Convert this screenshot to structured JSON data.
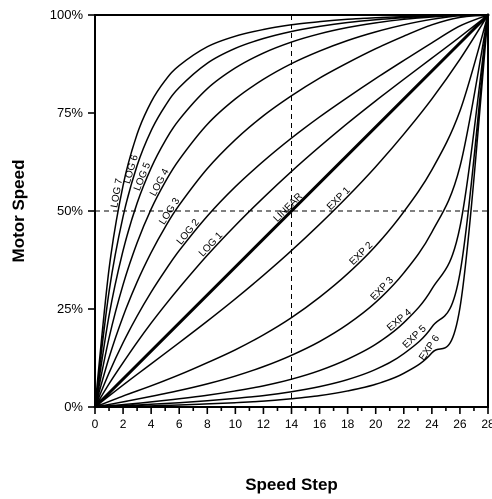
{
  "chart_data": {
    "type": "line",
    "title": "",
    "xlabel": "Speed Step",
    "ylabel": "Motor Speed",
    "xlim": [
      0,
      28
    ],
    "ylim": [
      0,
      100
    ],
    "x_ticks": [
      0,
      2,
      4,
      6,
      8,
      10,
      12,
      14,
      16,
      18,
      20,
      22,
      24,
      26,
      28
    ],
    "y_ticks": [
      {
        "value": 0,
        "label": "0%"
      },
      {
        "value": 25,
        "label": "25%"
      },
      {
        "value": 50,
        "label": "50%"
      },
      {
        "value": 75,
        "label": "75%"
      },
      {
        "value": 100,
        "label": "100%"
      }
    ],
    "grid": false,
    "reference_lines": {
      "x": 14,
      "y": 50,
      "style": "dashed"
    },
    "series": [
      {
        "name": "LOG 7",
        "x": [
          0,
          1,
          2,
          3,
          4,
          5,
          6,
          8,
          10,
          12,
          14,
          16,
          18,
          20,
          22,
          24,
          26,
          28
        ],
        "y": [
          0,
          35.2,
          56.5,
          69.6,
          77.8,
          83.3,
          87.1,
          91.9,
          94.6,
          96.3,
          97.5,
          98.3,
          98.9,
          99.3,
          99.6,
          99.8,
          99.9,
          100
        ]
      },
      {
        "name": "LOG 6",
        "x": [
          0,
          1,
          2,
          3,
          4,
          5,
          6,
          8,
          10,
          12,
          14,
          16,
          18,
          20,
          22,
          24,
          26,
          28
        ],
        "y": [
          0,
          29.4,
          48.6,
          61.6,
          70.5,
          76.8,
          81.5,
          87.7,
          91.5,
          94.0,
          95.8,
          97.1,
          98.1,
          98.8,
          99.3,
          99.7,
          99.9,
          100
        ]
      },
      {
        "name": "LOG 5",
        "x": [
          0,
          1,
          2,
          3,
          4,
          5,
          6,
          8,
          10,
          12,
          14,
          16,
          18,
          20,
          22,
          24,
          26,
          28
        ],
        "y": [
          0,
          23.3,
          39.9,
          52.0,
          61.0,
          67.9,
          73.3,
          81.2,
          86.5,
          90.3,
          93.1,
          95.2,
          96.8,
          98.0,
          98.9,
          99.5,
          99.9,
          100
        ]
      },
      {
        "name": "LOG 4",
        "x": [
          0,
          1,
          2,
          3,
          4,
          5,
          6,
          8,
          10,
          12,
          14,
          16,
          18,
          20,
          22,
          24,
          26,
          28
        ],
        "y": [
          0,
          17.6,
          31.2,
          41.9,
          50.5,
          57.4,
          63.1,
          72.1,
          78.6,
          83.6,
          87.6,
          90.8,
          93.5,
          95.7,
          97.5,
          98.9,
          99.8,
          100
        ]
      },
      {
        "name": "LOG 3",
        "x": [
          0,
          1,
          2,
          3,
          4,
          5,
          6,
          8,
          10,
          12,
          14,
          16,
          18,
          20,
          22,
          24,
          26,
          28
        ],
        "y": [
          0,
          12.6,
          23.1,
          31.9,
          39.4,
          45.9,
          51.5,
          60.8,
          68.2,
          74.3,
          79.4,
          83.9,
          87.8,
          91.4,
          94.6,
          97.5,
          99.4,
          100
        ]
      },
      {
        "name": "LOG 2",
        "x": [
          0,
          1,
          2,
          3,
          4,
          5,
          6,
          8,
          10,
          12,
          14,
          16,
          18,
          20,
          22,
          24,
          26,
          28
        ],
        "y": [
          0,
          8.7,
          16.4,
          23.2,
          29.3,
          34.8,
          39.9,
          48.7,
          56.2,
          62.7,
          68.6,
          74.0,
          79.0,
          83.8,
          88.4,
          92.9,
          97.2,
          100
        ]
      },
      {
        "name": "LOG 1",
        "x": [
          0,
          1,
          2,
          3,
          4,
          5,
          6,
          8,
          10,
          12,
          14,
          16,
          18,
          20,
          22,
          24,
          26,
          28
        ],
        "y": [
          0,
          5.9,
          11.3,
          16.5,
          21.4,
          26.0,
          30.4,
          38.7,
          46.3,
          53.4,
          60.1,
          66.4,
          72.4,
          78.1,
          83.6,
          89.0,
          94.4,
          100
        ]
      },
      {
        "name": "LINEAR",
        "x": [
          0,
          28
        ],
        "y": [
          0,
          100
        ]
      },
      {
        "name": "EXP 1",
        "x": [
          0,
          2,
          4,
          6,
          8,
          10,
          12,
          14,
          16,
          18,
          20,
          22,
          24,
          26,
          28
        ],
        "y": [
          0,
          5.6,
          11.0,
          16.4,
          21.9,
          27.6,
          33.6,
          39.9,
          46.6,
          53.7,
          61.3,
          69.6,
          78.6,
          88.7,
          100
        ]
      },
      {
        "name": "EXP 2",
        "x": [
          0,
          2,
          4,
          6,
          8,
          10,
          12,
          14,
          16,
          18,
          20,
          22,
          24,
          26,
          28
        ],
        "y": [
          0,
          2.8,
          5.4,
          8.2,
          11.3,
          14.6,
          18.4,
          22.8,
          28.0,
          34.0,
          41.1,
          49.8,
          60.5,
          75.5,
          100
        ]
      },
      {
        "name": "EXP 3",
        "x": [
          0,
          2,
          4,
          6,
          8,
          10,
          12,
          14,
          16,
          18,
          20,
          22,
          24,
          26,
          28
        ],
        "y": [
          0,
          1.3,
          2.7,
          4.2,
          5.9,
          7.9,
          10.3,
          13.2,
          16.7,
          21.1,
          26.7,
          34.2,
          44.6,
          61.3,
          100
        ]
      },
      {
        "name": "EXP 4",
        "x": [
          0,
          2,
          4,
          6,
          8,
          10,
          12,
          14,
          16,
          18,
          20,
          22,
          24,
          26,
          28
        ],
        "y": [
          0,
          0.6,
          1.3,
          2.1,
          3.0,
          4.1,
          5.4,
          7.1,
          9.3,
          12.2,
          16.0,
          21.5,
          30.1,
          45.9,
          100
        ]
      },
      {
        "name": "EXP 5",
        "x": [
          0,
          2,
          4,
          6,
          8,
          10,
          12,
          14,
          16,
          18,
          20,
          22,
          24,
          26,
          28
        ],
        "y": [
          0,
          0.3,
          0.7,
          1.1,
          1.6,
          2.2,
          2.9,
          3.9,
          5.2,
          7.0,
          9.6,
          13.6,
          20.4,
          34.1,
          100
        ]
      },
      {
        "name": "EXP 6",
        "x": [
          0,
          2,
          4,
          6,
          8,
          10,
          12,
          14,
          16,
          18,
          20,
          22,
          24,
          26,
          28
        ],
        "y": [
          0,
          0.1,
          0.3,
          0.5,
          0.8,
          1.1,
          1.5,
          2.1,
          2.9,
          4.1,
          5.8,
          8.6,
          13.8,
          25.3,
          100
        ]
      }
    ]
  }
}
